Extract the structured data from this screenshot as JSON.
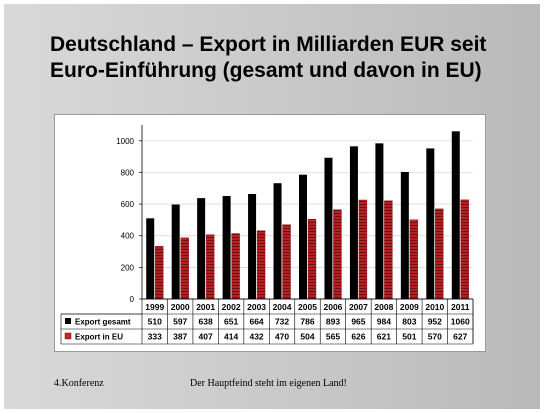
{
  "slide": {
    "title": "Deutschland – Export in Milliarden EUR seit Euro-Einführung (gesamt und davon in EU)",
    "footer_left": "4.Konferenz",
    "footer_center": "Der Hauptfeind steht im eigenen Land!"
  },
  "colors": {
    "series_total": "#000000",
    "series_eu": "#c0282a"
  },
  "chart_data": {
    "type": "bar",
    "categories": [
      "1999",
      "2000",
      "2001",
      "2002",
      "2003",
      "2004",
      "2005",
      "2006",
      "2007",
      "2008",
      "2009",
      "2010",
      "2011"
    ],
    "series": [
      {
        "name": "Export gesamt",
        "values": [
          510,
          597,
          638,
          651,
          664,
          732,
          786,
          893,
          965,
          984,
          803,
          952,
          1060
        ]
      },
      {
        "name": "Export in EU",
        "values": [
          333,
          387,
          407,
          414,
          432,
          470,
          504,
          565,
          626,
          621,
          501,
          570,
          627
        ]
      }
    ],
    "ylim": [
      0,
      1100
    ],
    "yticks": [
      0,
      200,
      400,
      600,
      800,
      1000
    ],
    "grid": true,
    "legend": "data-table-below"
  }
}
